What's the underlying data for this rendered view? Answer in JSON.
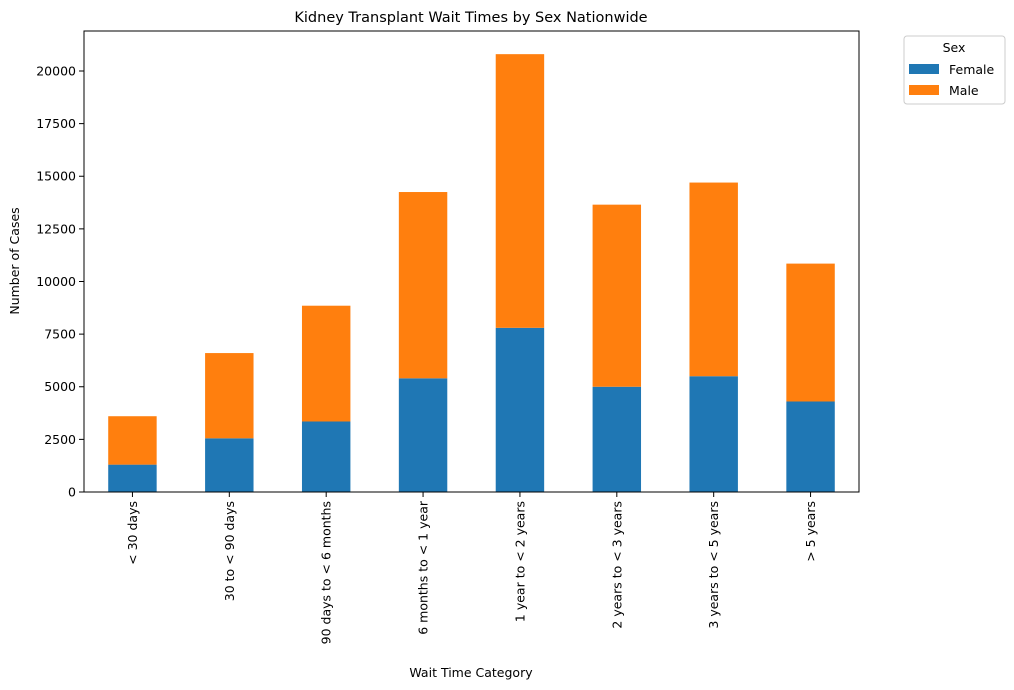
{
  "chart_data": {
    "type": "bar",
    "stacked": true,
    "title": "Kidney Transplant Wait Times by Sex Nationwide",
    "xlabel": "Wait Time Category",
    "ylabel": "Number of Cases",
    "categories": [
      "< 30 days",
      "30 to < 90 days",
      "90 days to < 6 months",
      "6 months to < 1 year",
      "1 year to < 2 years",
      "2 years to < 3 years",
      "3 years to < 5 years",
      "> 5 years"
    ],
    "series": [
      {
        "name": "Female",
        "color": "#1f77b4",
        "values": [
          1300,
          2550,
          3350,
          5400,
          7800,
          5000,
          5500,
          4300
        ]
      },
      {
        "name": "Male",
        "color": "#ff7f0e",
        "values": [
          2300,
          4050,
          5500,
          8850,
          13000,
          8650,
          9200,
          6550
        ]
      }
    ],
    "ylim": [
      0,
      21900
    ],
    "yticks": [
      0,
      2500,
      5000,
      7500,
      10000,
      12500,
      15000,
      17500,
      20000
    ],
    "grid": false,
    "legend": {
      "title": "Sex",
      "placement": "outside-top-right"
    }
  }
}
